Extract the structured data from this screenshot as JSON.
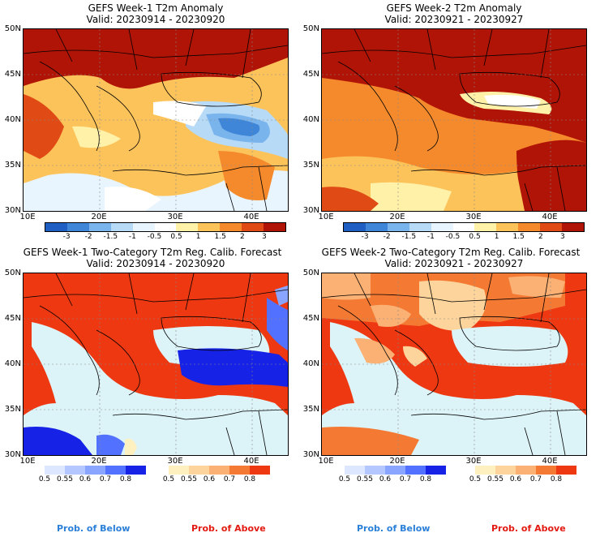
{
  "panels": [
    {
      "title": "GEFS Week-1 T2m Anomaly",
      "valid": "Valid: 20230914 - 20230920"
    },
    {
      "title": "GEFS Week-2 T2m Anomaly",
      "valid": "Valid: 20230921 - 20230927"
    },
    {
      "title": "GEFS Week-1 Two-Category T2m Reg. Calib. Forecast",
      "valid": "Valid: 20230914 - 20230920"
    },
    {
      "title": "GEFS Week-2 Two-Category T2m Reg. Calib. Forecast",
      "valid": "Valid: 20230921 - 20230927"
    }
  ],
  "axes": {
    "lat_labels": [
      "50N",
      "45N",
      "40N",
      "35N",
      "30N"
    ],
    "lon_labels": [
      "10E",
      "20E",
      "30E",
      "40E"
    ]
  },
  "anomaly_colorbar": {
    "labels": [
      "-3",
      "-2",
      "-1.5",
      "-1",
      "-0.5",
      "0.5",
      "1",
      "1.5",
      "2",
      "3"
    ],
    "colors": [
      "#1f5fc4",
      "#3f86d8",
      "#7ab4ec",
      "#b7daf7",
      "#e8f5ff",
      "#ffffff",
      "#fff1a8",
      "#fdc35b",
      "#f58a2c",
      "#e04a14",
      "#b01406"
    ]
  },
  "prob_colorbars": {
    "below_labels": [
      "0.5",
      "0.55",
      "0.6",
      "0.7",
      "0.8"
    ],
    "below_colors": [
      "#dde7ff",
      "#b4c8ff",
      "#8aa5ff",
      "#5271ff",
      "#1622e6"
    ],
    "above_labels": [
      "0.5",
      "0.55",
      "0.6",
      "0.7",
      "0.8"
    ],
    "above_colors": [
      "#fff0c0",
      "#fdd49b",
      "#fbb074",
      "#f47a34",
      "#ee3812"
    ]
  },
  "legend": {
    "below": "Prob. of Below",
    "above": "Prob. of Above",
    "below_color": "#2a7fd8",
    "above_color": "#e21a12"
  }
}
